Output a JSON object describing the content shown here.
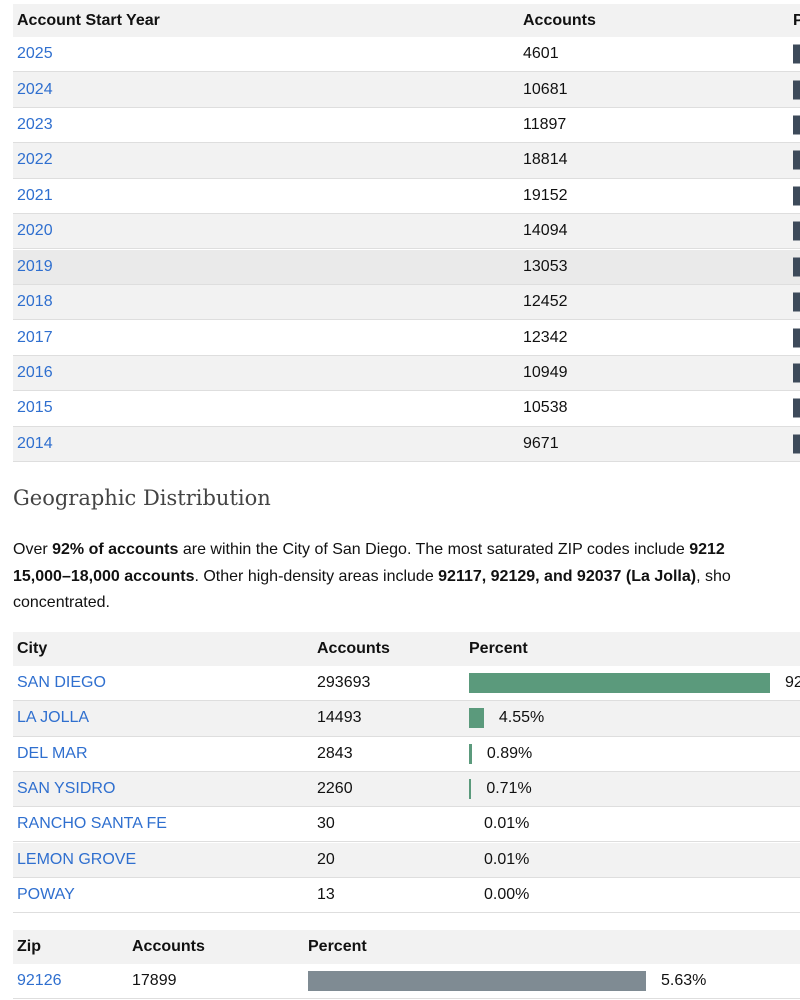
{
  "year_table": {
    "headers": [
      "Account Start Year",
      "Accounts",
      "P"
    ],
    "rows": [
      {
        "year": "2025",
        "accounts": 4601
      },
      {
        "year": "2024",
        "accounts": 10681
      },
      {
        "year": "2023",
        "accounts": 11897
      },
      {
        "year": "2022",
        "accounts": 18814
      },
      {
        "year": "2021",
        "accounts": 19152
      },
      {
        "year": "2020",
        "accounts": 14094
      },
      {
        "year": "2019",
        "accounts": 13053
      },
      {
        "year": "2018",
        "accounts": 12452
      },
      {
        "year": "2017",
        "accounts": 12342
      },
      {
        "year": "2016",
        "accounts": 10949
      },
      {
        "year": "2015",
        "accounts": 10538
      },
      {
        "year": "2014",
        "accounts": 9671
      }
    ]
  },
  "section_title": "Geographic Distribution",
  "paragraph": {
    "lines": [
      [
        {
          "text": "Over ",
          "bold": false
        },
        {
          "text": "92% of accounts",
          "bold": true
        },
        {
          "text": " are within the City of San Diego. The most saturated ZIP codes include ",
          "bold": false
        },
        {
          "text": "9212",
          "bold": true
        }
      ],
      [
        {
          "text": "15,000–18,000 accounts",
          "bold": true
        },
        {
          "text": ". Other high-density areas include ",
          "bold": false
        },
        {
          "text": "92117, 92129, and 92037 (La Jolla)",
          "bold": true
        },
        {
          "text": ", sho",
          "bold": false
        }
      ],
      [
        {
          "text": "concentrated.",
          "bold": false
        }
      ]
    ]
  },
  "city_table": {
    "headers": [
      "City",
      "Accounts",
      "Percent"
    ],
    "bar_color": "#5b9a7c",
    "rows": [
      {
        "city": "SAN DIEGO",
        "accounts": 293693,
        "percent": 92.2,
        "percent_label": "92"
      },
      {
        "city": "LA JOLLA",
        "accounts": 14493,
        "percent": 4.55,
        "percent_label": "4.55%"
      },
      {
        "city": "DEL MAR",
        "accounts": 2843,
        "percent": 0.89,
        "percent_label": "0.89%"
      },
      {
        "city": "SAN YSIDRO",
        "accounts": 2260,
        "percent": 0.71,
        "percent_label": "0.71%"
      },
      {
        "city": "RANCHO SANTA FE",
        "accounts": 30,
        "percent": 0.01,
        "percent_label": "0.01%"
      },
      {
        "city": "LEMON GROVE",
        "accounts": 20,
        "percent": 0.01,
        "percent_label": "0.01%"
      },
      {
        "city": "POWAY",
        "accounts": 13,
        "percent": 0.0,
        "percent_label": "0.00%"
      }
    ]
  },
  "zip_table": {
    "headers": [
      "Zip",
      "Accounts",
      "Percent"
    ],
    "bar_color": "#7f8b93",
    "rows": [
      {
        "zip": "92126",
        "accounts": 17899,
        "percent": 5.63,
        "percent_label": "5.63%"
      }
    ]
  }
}
